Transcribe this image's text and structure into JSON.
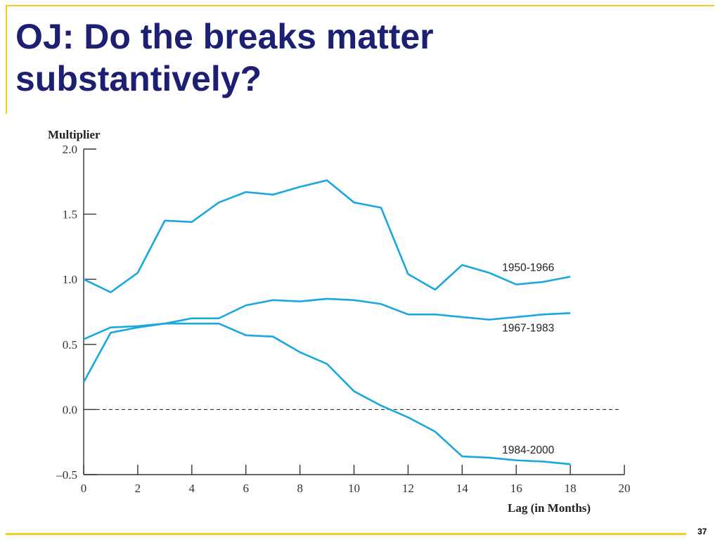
{
  "slide": {
    "title": "OJ:  Do the breaks matter\nsubstantively?",
    "page_number": "37",
    "accent_color": "#f2cf1c",
    "title_color": "#1d1f73"
  },
  "chart_data": {
    "type": "line",
    "title": "",
    "xlabel": "Lag (in Months)",
    "ylabel": "Multiplier",
    "xlim": [
      0,
      20
    ],
    "ylim": [
      -0.5,
      2.0
    ],
    "x_ticks": [
      "0",
      "2",
      "4",
      "6",
      "8",
      "10",
      "12",
      "14",
      "16",
      "18",
      "20"
    ],
    "y_ticks": [
      "2.0",
      "1.5",
      "1.0",
      "0.5",
      "0.0",
      "–0.5"
    ],
    "grid": false,
    "zero_line": "dashed",
    "line_color": "#1aa7e0",
    "x": [
      0,
      1,
      2,
      3,
      4,
      5,
      6,
      7,
      8,
      9,
      10,
      11,
      12,
      13,
      14,
      15,
      16,
      17,
      18
    ],
    "series": [
      {
        "name": "1950-1966",
        "values": [
          1.0,
          0.9,
          1.05,
          1.45,
          1.44,
          1.59,
          1.67,
          1.65,
          1.71,
          1.76,
          1.59,
          1.55,
          1.04,
          0.92,
          1.11,
          1.05,
          0.96,
          0.98,
          1.02
        ]
      },
      {
        "name": "1967-1983",
        "values": [
          0.21,
          0.59,
          0.63,
          0.66,
          0.7,
          0.7,
          0.8,
          0.84,
          0.83,
          0.85,
          0.84,
          0.81,
          0.73,
          0.73,
          0.71,
          0.69,
          0.71,
          0.73,
          0.74
        ]
      },
      {
        "name": "1984-2000",
        "values": [
          0.54,
          0.63,
          0.64,
          0.66,
          0.66,
          0.66,
          0.57,
          0.56,
          0.44,
          0.35,
          0.14,
          0.03,
          -0.06,
          -0.17,
          -0.36,
          -0.37,
          -0.39,
          -0.4,
          -0.42
        ]
      }
    ]
  }
}
